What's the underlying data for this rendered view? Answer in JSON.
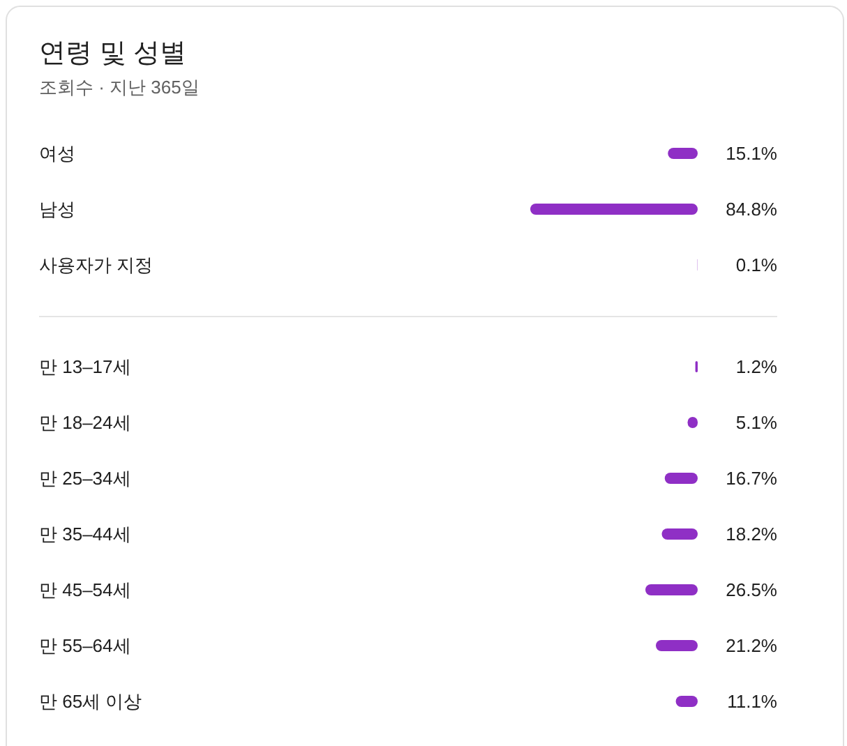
{
  "chart_data": [
    {
      "type": "bar",
      "orientation": "horizontal",
      "title": "연령 및 성별",
      "subtitle": "조회수 · 지난 365일",
      "color": "#8f2fc5",
      "categories": [
        "여성",
        "남성",
        "사용자가 지정"
      ],
      "values": [
        15.1,
        84.8,
        0.1
      ],
      "value_labels": [
        "15.1%",
        "84.8%",
        "0.1%"
      ]
    },
    {
      "type": "bar",
      "orientation": "horizontal",
      "color": "#8f2fc5",
      "categories": [
        "만 13–17세",
        "만 18–24세",
        "만 25–34세",
        "만 35–44세",
        "만 45–54세",
        "만 55–64세",
        "만 65세 이상"
      ],
      "values": [
        1.2,
        5.1,
        16.7,
        18.2,
        26.5,
        21.2,
        11.1
      ],
      "value_labels": [
        "1.2%",
        "5.1%",
        "16.7%",
        "18.2%",
        "26.5%",
        "21.2%",
        "11.1%"
      ]
    }
  ]
}
